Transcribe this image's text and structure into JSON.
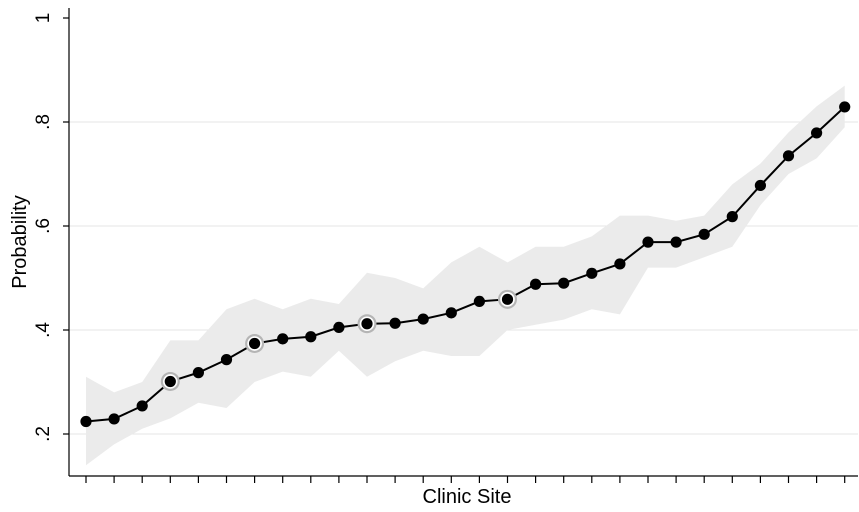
{
  "chart_data": {
    "type": "line",
    "title": "",
    "xlabel": "Clinic Site",
    "ylabel": "Probability",
    "ylim": [
      0.17,
      1.02
    ],
    "yticks": [
      {
        "value": 0.2,
        "label": ".2"
      },
      {
        "value": 0.4,
        "label": ".4"
      },
      {
        "value": 0.6,
        "label": ".6"
      },
      {
        "value": 0.8,
        "label": ".8"
      },
      {
        "value": 1.0,
        "label": "1"
      }
    ],
    "grid": true,
    "legend": "none",
    "colors": {
      "line": "#000000",
      "band": "#ebebeb",
      "grid": "#e6e6e6"
    },
    "x": [
      1,
      2,
      3,
      4,
      5,
      6,
      7,
      8,
      9,
      10,
      11,
      12,
      13,
      14,
      15,
      16,
      17,
      18,
      19,
      20,
      21,
      22,
      23,
      24,
      25,
      26,
      27,
      28
    ],
    "series": [
      {
        "values": [
          0.224,
          0.229,
          0.254,
          0.301,
          0.318,
          0.343,
          0.374,
          0.383,
          0.387,
          0.405,
          0.412,
          0.413,
          0.421,
          0.433,
          0.455,
          0.459,
          0.488,
          0.49,
          0.509,
          0.527,
          0.569,
          0.569,
          0.584,
          0.618,
          0.678,
          0.735,
          0.779,
          0.829
        ],
        "lower": [
          0.14,
          0.18,
          0.21,
          0.23,
          0.26,
          0.25,
          0.3,
          0.32,
          0.31,
          0.36,
          0.31,
          0.34,
          0.36,
          0.35,
          0.35,
          0.4,
          0.41,
          0.42,
          0.44,
          0.43,
          0.52,
          0.52,
          0.54,
          0.56,
          0.64,
          0.7,
          0.73,
          0.79
        ],
        "upper": [
          0.31,
          0.28,
          0.3,
          0.38,
          0.38,
          0.44,
          0.46,
          0.44,
          0.46,
          0.45,
          0.51,
          0.5,
          0.48,
          0.53,
          0.56,
          0.53,
          0.56,
          0.56,
          0.58,
          0.62,
          0.62,
          0.61,
          0.62,
          0.68,
          0.72,
          0.78,
          0.83,
          0.87
        ]
      }
    ],
    "highlighted_x": [
      4,
      7,
      11,
      16
    ]
  }
}
